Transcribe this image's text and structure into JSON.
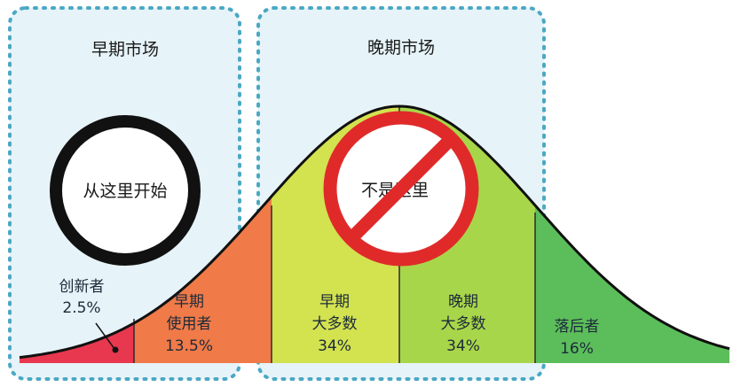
{
  "panels": {
    "early": {
      "title": "早期市场"
    },
    "late": {
      "title": "晚期市场"
    }
  },
  "callout": {
    "start_here": "从这里开始",
    "not_here": "不是这里"
  },
  "segments": [
    {
      "id": "innovators",
      "label_1": "创新者",
      "label_2": "2.5%",
      "share": 2.5,
      "color": "#e8384f"
    },
    {
      "id": "early-adopters",
      "label_1": "早期",
      "label_2": "使用者",
      "label_3": "13.5%",
      "share": 13.5,
      "color": "#f07a48"
    },
    {
      "id": "early-majority",
      "label_1": "早期",
      "label_2": "大多数",
      "label_3": "34%",
      "share": 34,
      "color": "#d3e24f"
    },
    {
      "id": "late-majority",
      "label_1": "晚期",
      "label_2": "大多数",
      "label_3": "34%",
      "share": 34,
      "color": "#a8d64a"
    },
    {
      "id": "laggards",
      "label_1": "落后者",
      "label_2": "16%",
      "share": 16,
      "color": "#5cbe5a"
    }
  ],
  "colors": {
    "panel_fill": "#e6f3f8",
    "panel_border": "#4aa8c4",
    "curve": "#111111",
    "ring": "#111111",
    "prohibit": "#e02a2a"
  }
}
